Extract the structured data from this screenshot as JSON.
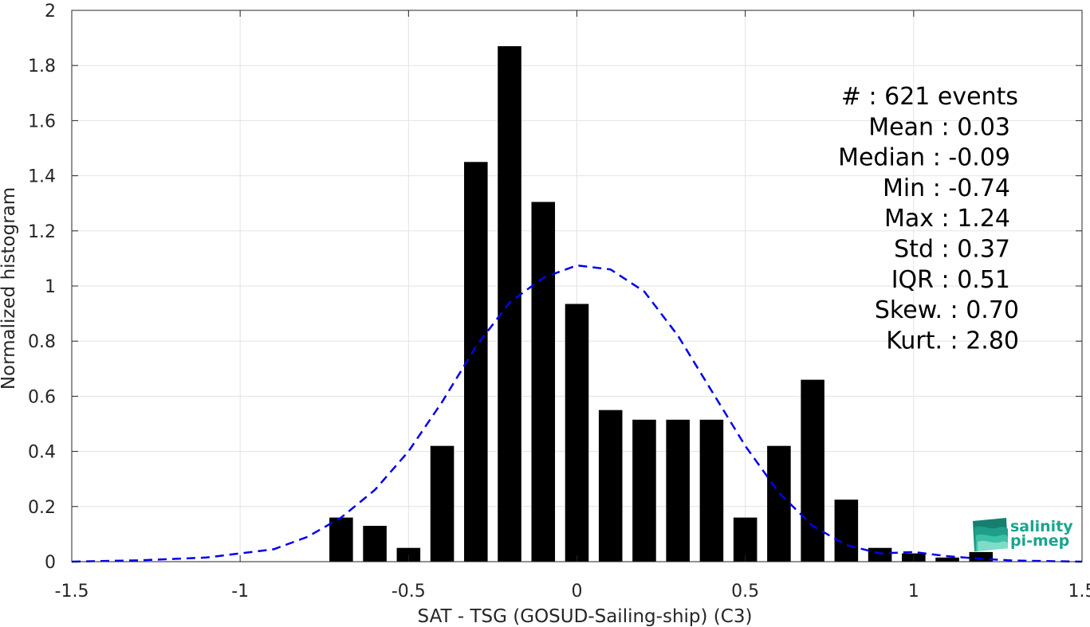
{
  "chart_data": {
    "type": "bar",
    "xlabel": "SAT - TSG (GOSUD-Sailing-ship) (C3)",
    "ylabel": "Normalized histogram",
    "xlim": [
      -1.5,
      1.5
    ],
    "ylim": [
      0,
      2
    ],
    "xticks": [
      -1.5,
      -1,
      -0.5,
      0,
      0.5,
      1,
      1.5
    ],
    "xtick_labels": [
      "-1.5",
      "-1",
      "-0.5",
      "0",
      "0.5",
      "1",
      "1.5"
    ],
    "yticks": [
      0,
      0.2,
      0.4,
      0.6,
      0.8,
      1,
      1.2,
      1.4,
      1.6,
      1.8,
      2
    ],
    "ytick_labels": [
      "0",
      "0.2",
      "0.4",
      "0.6",
      "0.8",
      "1",
      "1.2",
      "1.4",
      "1.6",
      "1.8",
      "2"
    ],
    "grid": true,
    "bar_width": 0.07,
    "bar_color": "#000000",
    "bars": {
      "x": [
        -0.7,
        -0.6,
        -0.5,
        -0.4,
        -0.3,
        -0.2,
        -0.1,
        0.0,
        0.1,
        0.2,
        0.3,
        0.4,
        0.5,
        0.6,
        0.7,
        0.8,
        0.9,
        1.0,
        1.1,
        1.2
      ],
      "values": [
        0.16,
        0.13,
        0.05,
        0.42,
        1.45,
        1.87,
        1.305,
        0.935,
        0.55,
        0.515,
        0.515,
        0.515,
        0.16,
        0.42,
        0.66,
        0.225,
        0.05,
        0.03,
        0.015,
        0.035
      ]
    },
    "fit_curve": {
      "style": "dashed",
      "color": "#0000ee",
      "x": [
        -1.5,
        -1.3,
        -1.1,
        -0.9,
        -0.8,
        -0.7,
        -0.6,
        -0.5,
        -0.4,
        -0.3,
        -0.2,
        -0.1,
        0.0,
        0.1,
        0.2,
        0.3,
        0.4,
        0.5,
        0.6,
        0.7,
        0.8,
        0.9,
        1.0,
        1.1,
        1.2,
        1.3,
        1.5
      ],
      "y": [
        0.0,
        0.005,
        0.015,
        0.045,
        0.09,
        0.16,
        0.26,
        0.4,
        0.58,
        0.78,
        0.94,
        1.03,
        1.075,
        1.06,
        0.98,
        0.82,
        0.62,
        0.42,
        0.25,
        0.13,
        0.06,
        0.03,
        0.035,
        0.02,
        0.01,
        0.004,
        0.0
      ]
    },
    "stats": [
      {
        "label": "#  : 621 events"
      },
      {
        "label": "Mean : 0.03"
      },
      {
        "label": "Median : -0.09"
      },
      {
        "label": "Min : -0.74"
      },
      {
        "label": "Max : 1.24"
      },
      {
        "label": "Std : 0.37"
      },
      {
        "label": "IQR : 0.51"
      },
      {
        "label": "Skew. : 0.70"
      },
      {
        "label": "Kurt. : 2.80"
      }
    ]
  },
  "logo": {
    "line1": "salinity",
    "line2": "pi-mep",
    "color": "#1aa58f"
  }
}
